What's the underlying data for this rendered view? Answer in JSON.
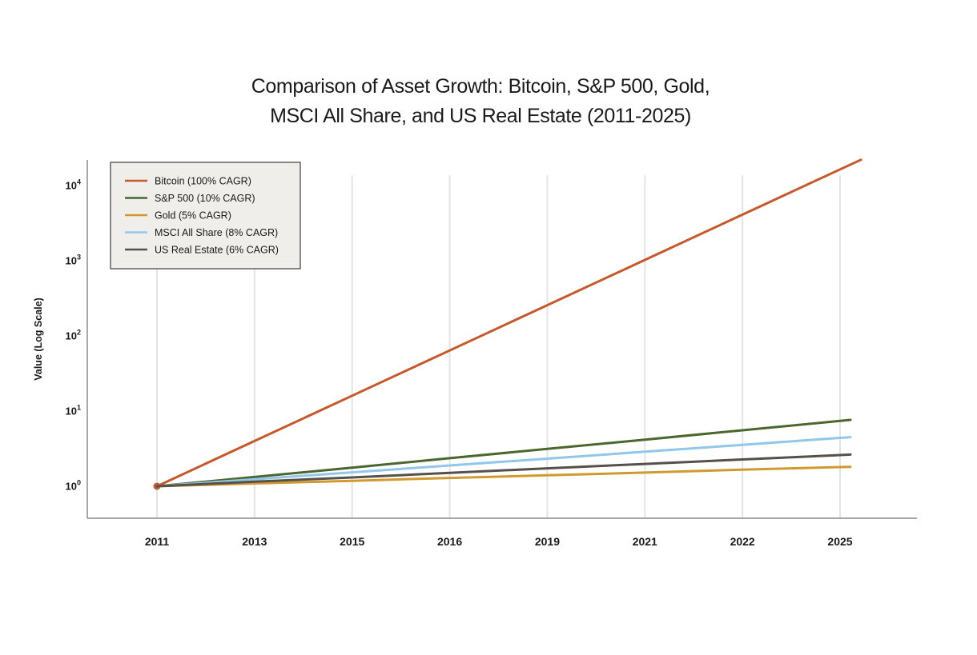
{
  "header": {
    "title_line1": "Comparison of Asset Growth: Bitcoin, S&P 500, Gold,",
    "title_line2": "MSCI All Share, and US Real Estate (2011-2025)"
  },
  "chart_data": {
    "type": "line",
    "title": "Comparison of Asset Growth: Bitcoin, S&P 500, Gold, MSCI All Share, and US Real Estate (2011-2025)",
    "xlabel": "",
    "ylabel": "Value (Log Scale)",
    "yscale": "log",
    "ylim": [
      1,
      20000
    ],
    "y_tick_exponents": [
      0,
      1,
      2,
      3,
      4
    ],
    "grid": "vertical-only",
    "legend_position": "top-left",
    "categories": [
      "2011",
      "2013",
      "2015",
      "2016",
      "2019",
      "2021",
      "2022",
      "2025"
    ],
    "series": [
      {
        "name": "Bitcoin (100% CAGR)",
        "color": "#C7582B",
        "start_marker": true,
        "values": [
          1,
          4,
          16,
          64,
          256,
          1024,
          4096,
          16384
        ]
      },
      {
        "name": "S&P 500 (10% CAGR)",
        "color": "#4C672E",
        "start_marker": false,
        "values": [
          1,
          1.33,
          1.77,
          2.36,
          3.14,
          4.17,
          5.56,
          7.4
        ]
      },
      {
        "name": "Gold (5% CAGR)",
        "color": "#D09A2E",
        "start_marker": false,
        "values": [
          1,
          1.09,
          1.18,
          1.29,
          1.4,
          1.52,
          1.66,
          1.8
        ]
      },
      {
        "name": "MSCI All Share (8% CAGR)",
        "color": "#92C7EB",
        "start_marker": false,
        "values": [
          1,
          1.24,
          1.53,
          1.89,
          2.33,
          2.88,
          3.56,
          4.4
        ]
      },
      {
        "name": "US Real Estate (6% CAGR)",
        "color": "#57504A",
        "start_marker": false,
        "values": [
          1,
          1.15,
          1.31,
          1.51,
          1.73,
          1.98,
          2.27,
          2.6
        ]
      }
    ]
  },
  "colors": {
    "background": "#FFFFFF",
    "grid": "#E4E4E4",
    "spine": "#8A8A8A",
    "text": "#1A1A1A",
    "legend_bg": "#EFEEEB",
    "legend_border": "#4A4A4A"
  }
}
